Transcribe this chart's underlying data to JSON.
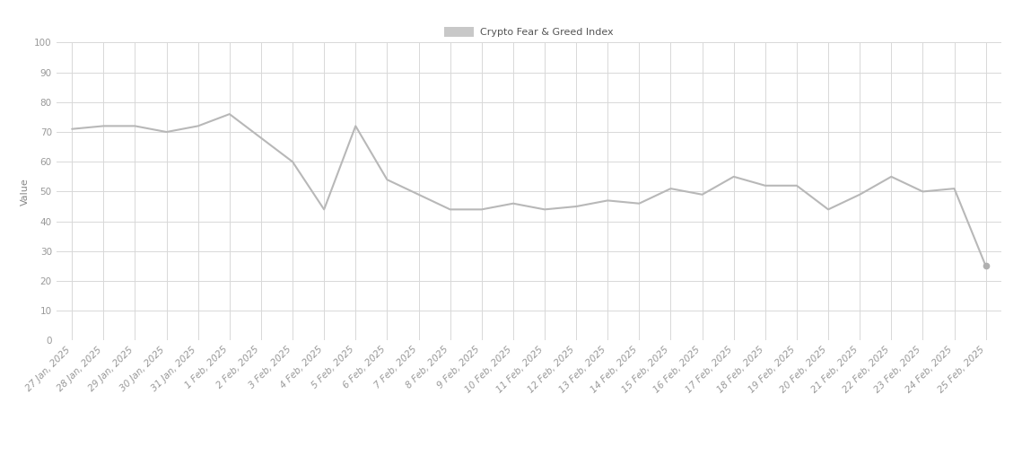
{
  "title": "Crypto Fear & Greed Index",
  "ylabel": "Value",
  "xlabels": [
    "27 Jan, 2025",
    "28 Jan, 2025",
    "29 Jan, 2025",
    "30 Jan, 2025",
    "31 Jan, 2025",
    "1 Feb, 2025",
    "2 Feb, 2025",
    "3 Feb, 2025",
    "4 Feb, 2025",
    "5 Feb, 2025",
    "6 Feb, 2025",
    "7 Feb, 2025",
    "8 Feb, 2025",
    "9 Feb, 2025",
    "10 Feb, 2025",
    "11 Feb, 2025",
    "12 Feb, 2025",
    "13 Feb, 2025",
    "14 Feb, 2025",
    "15 Feb, 2025",
    "16 Feb, 2025",
    "17 Feb, 2025",
    "18 Feb, 2025",
    "19 Feb, 2025",
    "20 Feb, 2025",
    "21 Feb, 2025",
    "22 Feb, 2025",
    "23 Feb, 2025",
    "24 Feb, 2025",
    "25 Feb, 2025"
  ],
  "values": [
    71,
    72,
    72,
    70,
    72,
    76,
    68,
    60,
    44,
    72,
    54,
    49,
    44,
    44,
    46,
    44,
    45,
    47,
    46,
    51,
    49,
    55,
    52,
    52,
    44,
    49,
    55,
    50,
    51,
    25
  ],
  "line_color": "#b8b8b8",
  "marker_color": "#b0b0b0",
  "background_color": "#ffffff",
  "grid_color": "#d8d8d8",
  "ylim": [
    0,
    100
  ],
  "yticks": [
    0,
    10,
    20,
    30,
    40,
    50,
    60,
    70,
    80,
    90,
    100
  ],
  "legend_label": "Crypto Fear & Greed Index",
  "legend_patch_color": "#c8c8c8",
  "title_fontsize": 10,
  "axis_label_fontsize": 8,
  "tick_fontsize": 7.5,
  "ylabel_color": "#888888",
  "tick_color": "#999999"
}
